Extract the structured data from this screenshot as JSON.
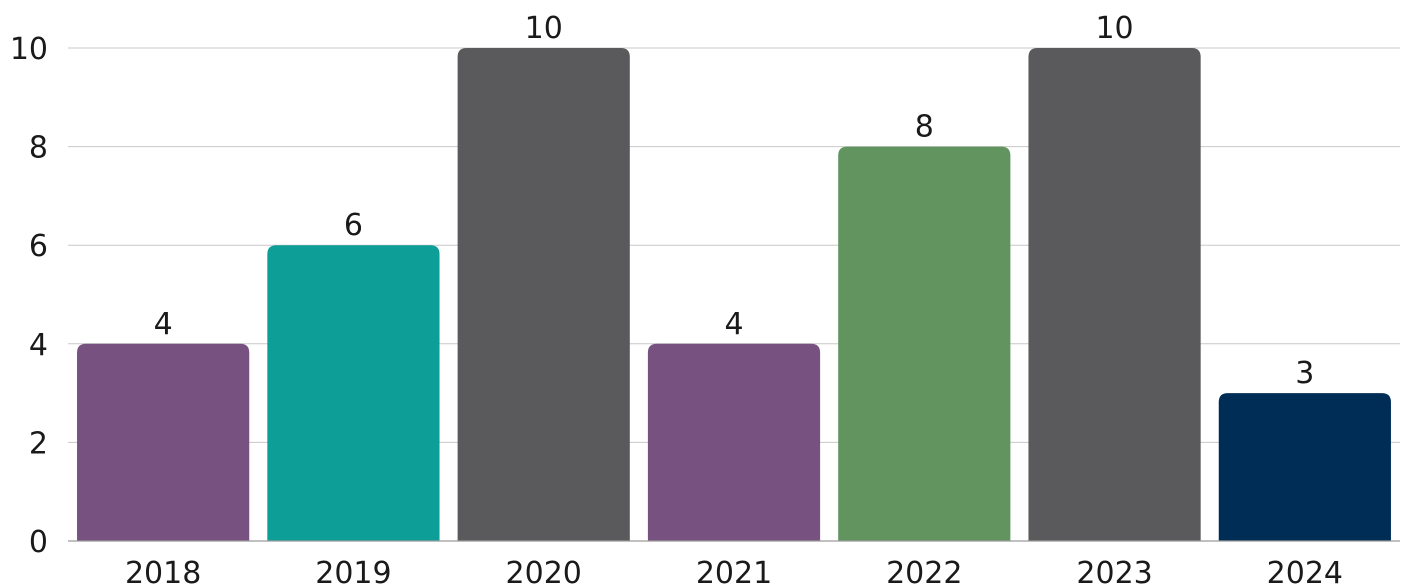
{
  "chart_data": {
    "type": "bar",
    "title": "",
    "xlabel": "",
    "ylabel": "",
    "categories": [
      "2018",
      "2019",
      "2020",
      "2021",
      "2022",
      "2023",
      "2024"
    ],
    "values": [
      4,
      6,
      10,
      4,
      8,
      10,
      3
    ],
    "colors": [
      "#775280",
      "#0c9e97",
      "#5a5a5c",
      "#775280",
      "#62945f",
      "#5a5a5c",
      "#002d56"
    ],
    "ylim": [
      0,
      10
    ],
    "yticks": [
      "0",
      "2",
      "4",
      "6",
      "8",
      "10"
    ],
    "grid": true,
    "legend": "none",
    "data_labels": true
  }
}
